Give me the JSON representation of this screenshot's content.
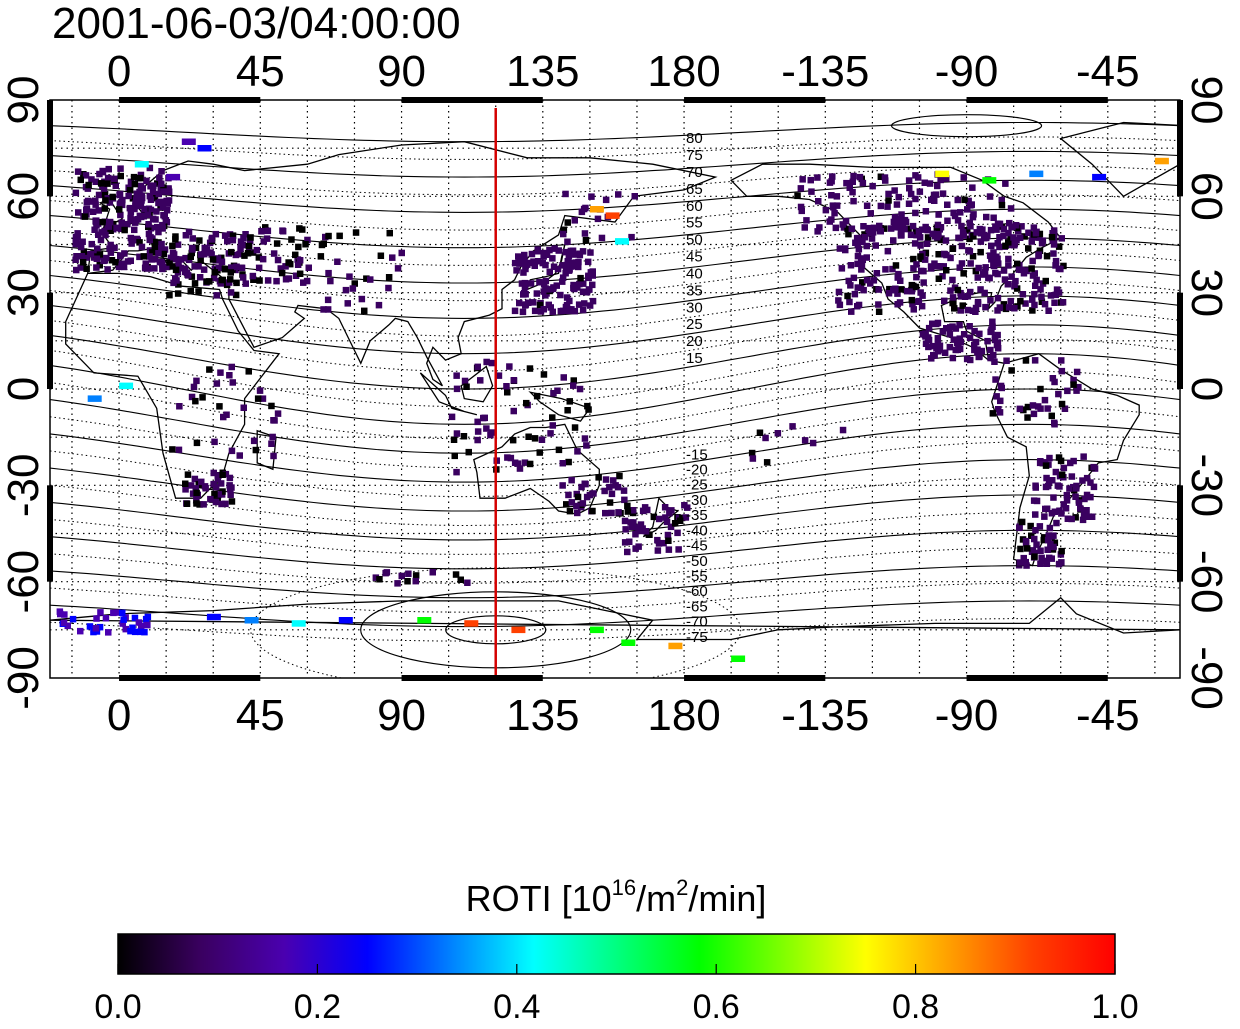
{
  "map": {
    "timestamp": "2001-06-03/04:00:00",
    "lon_ticks_top": [
      "0",
      "45",
      "90",
      "135",
      "180",
      "-135",
      "-90",
      "-45"
    ],
    "lon_ticks_bottom": [
      "0",
      "45",
      "90",
      "135",
      "180",
      "-135",
      "-90",
      "-45"
    ],
    "lat_ticks_left": [
      "90",
      "60",
      "30",
      "0",
      "-30",
      "-60",
      "-90"
    ],
    "lat_ticks_right": [
      "90",
      "60",
      "30",
      "0",
      "-30",
      "-60",
      "-90"
    ],
    "lon_range": [
      -22,
      338
    ],
    "lat_range": [
      -90,
      90
    ],
    "meridian_marker_lon": 120,
    "meridian_marker_color": "#d40000",
    "contour_labels_north": [
      "80",
      "75",
      "70",
      "65",
      "60",
      "55",
      "50",
      "45",
      "40",
      "35",
      "30",
      "25",
      "20",
      "15"
    ],
    "contour_labels_south": [
      "-15",
      "-20",
      "-25",
      "-30",
      "-35",
      "-40",
      "-45",
      "-50",
      "-55",
      "-60",
      "-65",
      "-70",
      "-75"
    ],
    "grid": true
  },
  "colorbar": {
    "label_main": "ROTI  [10",
    "label_sup1": "16",
    "label_mid": "/m",
    "label_sup2": "2",
    "label_end": "/min]",
    "ticks": [
      "0.0",
      "0.2",
      "0.4",
      "0.6",
      "0.8",
      "1.0"
    ],
    "range": [
      0.0,
      1.0
    ],
    "colors": [
      "#000000",
      "#3a0060",
      "#4a00b0",
      "#0000ff",
      "#0080ff",
      "#00ffff",
      "#00ff80",
      "#00ff00",
      "#80ff00",
      "#ffff00",
      "#ffa000",
      "#ff4000",
      "#ff0000"
    ]
  }
}
